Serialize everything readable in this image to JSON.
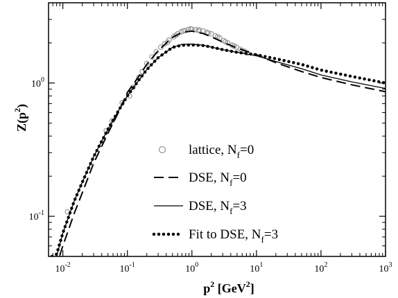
{
  "chart_data": {
    "type": "line",
    "xlabel": {
      "base": "p",
      "sup": "2",
      "unit_open": " [GeV",
      "unit_sup": "2",
      "unit_close": "]"
    },
    "ylabel": {
      "main": "Z(p",
      "sup": "2",
      "close": ")"
    },
    "x_scale": "log",
    "y_scale": "log",
    "xlim": [
      0.006,
      1000
    ],
    "ylim": [
      0.05,
      4.0
    ],
    "grid": false,
    "legend_position": "center",
    "x_ticks": [
      {
        "value": 0.01,
        "base": "10",
        "exp": "-2"
      },
      {
        "value": 0.1,
        "base": "10",
        "exp": "-1"
      },
      {
        "value": 1,
        "base": "10",
        "exp": "0"
      },
      {
        "value": 10,
        "base": "10",
        "exp": "1"
      },
      {
        "value": 100,
        "base": "10",
        "exp": "2"
      },
      {
        "value": 1000,
        "base": "10",
        "exp": "3"
      }
    ],
    "y_ticks": [
      {
        "value": 0.1,
        "base": "10",
        "exp": "-1"
      },
      {
        "value": 1,
        "base": "10",
        "exp": "0"
      }
    ],
    "series": [
      {
        "name": "lattice, N",
        "sub": "f",
        "suffix": "=0",
        "style": "circles",
        "color": "#999999",
        "points": [
          [
            0.0118,
            0.108
          ],
          [
            0.047,
            0.44
          ],
          [
            0.058,
            0.52
          ],
          [
            0.083,
            0.71
          ],
          [
            0.108,
            0.8
          ],
          [
            0.122,
            0.93
          ],
          [
            0.15,
            1.1
          ],
          [
            0.17,
            1.22
          ],
          [
            0.2,
            1.4
          ],
          [
            0.24,
            1.57
          ],
          [
            0.28,
            1.72
          ],
          [
            0.33,
            1.86
          ],
          [
            0.38,
            1.97
          ],
          [
            0.44,
            2.1
          ],
          [
            0.52,
            2.22
          ],
          [
            0.6,
            2.34
          ],
          [
            0.68,
            2.42
          ],
          [
            0.78,
            2.48
          ],
          [
            0.88,
            2.52
          ],
          [
            1.0,
            2.53
          ],
          [
            1.15,
            2.52
          ],
          [
            1.3,
            2.5
          ],
          [
            1.5,
            2.46
          ],
          [
            1.7,
            2.4
          ],
          [
            2.0,
            2.34
          ],
          [
            2.3,
            2.26
          ],
          [
            2.7,
            2.18
          ],
          [
            3.1,
            2.08
          ],
          [
            3.6,
            2.0
          ],
          [
            4.2,
            1.92
          ],
          [
            4.9,
            1.86
          ],
          [
            5.6,
            1.79
          ],
          [
            6.5,
            1.73
          ],
          [
            7.2,
            1.68
          ],
          [
            0.42,
            2.02
          ],
          [
            0.56,
            2.28
          ],
          [
            0.73,
            2.45
          ],
          [
            0.95,
            2.55
          ],
          [
            1.25,
            2.48
          ],
          [
            1.8,
            2.37
          ],
          [
            2.5,
            2.22
          ],
          [
            3.3,
            2.04
          ],
          [
            4.5,
            1.89
          ],
          [
            6.0,
            1.75
          ]
        ]
      },
      {
        "name": "DSE, N",
        "sub": "f",
        "suffix": "=0",
        "style": "dashed",
        "color": "#000000",
        "points": [
          [
            0.006,
            0.032
          ],
          [
            0.0085,
            0.047
          ],
          [
            0.01,
            0.06
          ],
          [
            0.015,
            0.105
          ],
          [
            0.02,
            0.15
          ],
          [
            0.03,
            0.25
          ],
          [
            0.05,
            0.42
          ],
          [
            0.07,
            0.58
          ],
          [
            0.1,
            0.85
          ],
          [
            0.15,
            1.12
          ],
          [
            0.2,
            1.38
          ],
          [
            0.3,
            1.75
          ],
          [
            0.5,
            2.2
          ],
          [
            0.7,
            2.4
          ],
          [
            1.0,
            2.45
          ],
          [
            1.5,
            2.35
          ],
          [
            2.0,
            2.22
          ],
          [
            3.0,
            2.03
          ],
          [
            5.0,
            1.83
          ],
          [
            10.0,
            1.63
          ],
          [
            20.0,
            1.42
          ],
          [
            50.0,
            1.22
          ],
          [
            100.0,
            1.1
          ],
          [
            300.0,
            0.97
          ],
          [
            1000.0,
            0.86
          ]
        ]
      },
      {
        "name": "DSE, N",
        "sub": "f",
        "suffix": "=3",
        "style": "solid",
        "color": "#000000",
        "points": [
          [
            0.006,
            0.04
          ],
          [
            0.008,
            0.05
          ],
          [
            0.01,
            0.075
          ],
          [
            0.015,
            0.13
          ],
          [
            0.02,
            0.18
          ],
          [
            0.03,
            0.28
          ],
          [
            0.05,
            0.45
          ],
          [
            0.07,
            0.6
          ],
          [
            0.1,
            0.8
          ],
          [
            0.15,
            1.05
          ],
          [
            0.2,
            1.26
          ],
          [
            0.3,
            1.55
          ],
          [
            0.5,
            1.85
          ],
          [
            0.7,
            1.95
          ],
          [
            1.0,
            1.96
          ],
          [
            1.5,
            1.92
          ],
          [
            2.0,
            1.86
          ],
          [
            3.0,
            1.78
          ],
          [
            5.0,
            1.7
          ],
          [
            10.0,
            1.6
          ],
          [
            20.0,
            1.45
          ],
          [
            50.0,
            1.28
          ],
          [
            100.0,
            1.15
          ],
          [
            300.0,
            1.02
          ],
          [
            1000.0,
            0.91
          ]
        ]
      },
      {
        "name": "Fit to DSE, N",
        "sub": "f",
        "suffix": "=3",
        "style": "dotted",
        "color": "#000000",
        "points": [
          [
            0.0068,
            0.05
          ],
          [
            0.008,
            0.052
          ],
          [
            0.01,
            0.075
          ],
          [
            0.015,
            0.13
          ],
          [
            0.02,
            0.18
          ],
          [
            0.03,
            0.28
          ],
          [
            0.05,
            0.45
          ],
          [
            0.07,
            0.6
          ],
          [
            0.1,
            0.8
          ],
          [
            0.15,
            1.05
          ],
          [
            0.2,
            1.26
          ],
          [
            0.3,
            1.55
          ],
          [
            0.5,
            1.85
          ],
          [
            0.7,
            1.92
          ],
          [
            1.0,
            1.93
          ],
          [
            1.5,
            1.91
          ],
          [
            2.0,
            1.86
          ],
          [
            3.0,
            1.78
          ],
          [
            5.0,
            1.7
          ],
          [
            10.0,
            1.63
          ],
          [
            20.0,
            1.52
          ],
          [
            50.0,
            1.38
          ],
          [
            100.0,
            1.25
          ],
          [
            300.0,
            1.12
          ],
          [
            1000.0,
            1.0
          ]
        ]
      }
    ]
  }
}
